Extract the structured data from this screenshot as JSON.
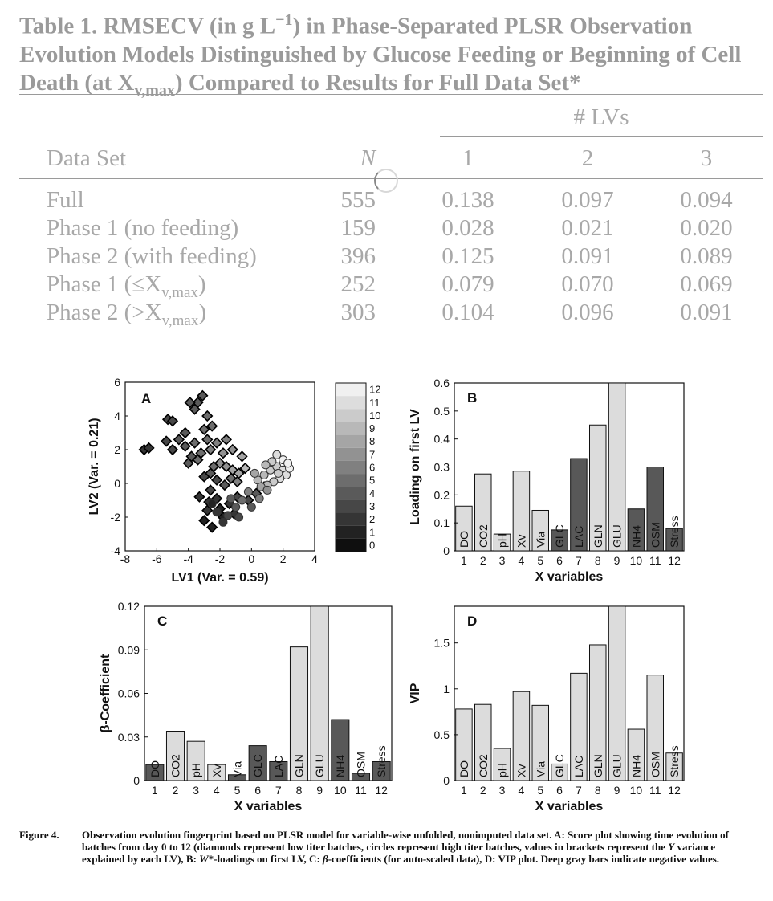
{
  "table": {
    "title_prefix": "Table 1. RMSECV (in g L",
    "title_sup": "−1",
    "title_mid": ") in Phase-Separated PLSR Observation Evolution Models Distinguished by Glucose Feeding or Beginning of Cell Death (at X",
    "title_sub": "v,max",
    "title_suffix": ") Compared to Results for Full Data Set*",
    "group_header": "# LVs",
    "col_dataset": "Data Set",
    "col_n": "N",
    "lv_headers": [
      "1",
      "2",
      "3"
    ],
    "rows": [
      {
        "label": "Full",
        "sub": "",
        "tail": "",
        "n": "555",
        "v": [
          "0.138",
          "0.097",
          "0.094"
        ]
      },
      {
        "label": "Phase 1 (no feeding)",
        "sub": "",
        "tail": "",
        "n": "159",
        "v": [
          "0.028",
          "0.021",
          "0.020"
        ]
      },
      {
        "label": "Phase 2 (with feeding)",
        "sub": "",
        "tail": "",
        "n": "396",
        "v": [
          "0.125",
          "0.091",
          "0.089"
        ]
      },
      {
        "label": "Phase 1 (≤X",
        "sub": "v,max",
        "tail": ")",
        "n": "252",
        "v": [
          "0.079",
          "0.070",
          "0.069"
        ]
      },
      {
        "label": "Phase 2 (>X",
        "sub": "v,max",
        "tail": ")",
        "n": "303",
        "v": [
          "0.104",
          "0.096",
          "0.091"
        ]
      }
    ]
  },
  "chart_data": [
    {
      "panel": "A",
      "type": "scatter",
      "xlabel": "LV1  (Var. = 0.59)",
      "ylabel": "LV2  (Var. = 0.21)",
      "xlim": [
        -8,
        4
      ],
      "ylim": [
        -4,
        6
      ],
      "xticks": [
        "-8",
        "-6",
        "-4",
        "-2",
        "0",
        "2",
        "4"
      ],
      "yticks": [
        "-4",
        "-2",
        "0",
        "2",
        "4",
        "6"
      ],
      "colorbar_labels": [
        "12",
        "11",
        "10",
        "9",
        "8",
        "7",
        "6",
        "5",
        "4",
        "3",
        "2",
        "1",
        "0"
      ],
      "series": [
        {
          "marker": "diamond",
          "points": [
            [
              -6.8,
              2.0,
              2
            ],
            [
              -6.5,
              2.1,
              2
            ],
            [
              -5.3,
              3.8,
              3
            ],
            [
              -5.0,
              3.7,
              3
            ],
            [
              -5.4,
              2.5,
              3
            ],
            [
              -5.0,
              2.0,
              3
            ],
            [
              -4.6,
              2.6,
              4
            ],
            [
              -4.2,
              2.2,
              4
            ],
            [
              -3.8,
              1.6,
              4
            ],
            [
              -3.4,
              1.4,
              5
            ],
            [
              -3.4,
              4.8,
              4
            ],
            [
              -3.1,
              5.2,
              4
            ],
            [
              -3.9,
              4.8,
              4
            ],
            [
              -3.6,
              4.4,
              4
            ],
            [
              -3.0,
              3.2,
              5
            ],
            [
              -2.8,
              2.6,
              5
            ],
            [
              -2.6,
              2.0,
              6
            ],
            [
              -2.2,
              2.4,
              6
            ],
            [
              -1.8,
              1.8,
              7
            ],
            [
              -2.0,
              1.2,
              7
            ],
            [
              -1.6,
              1.0,
              7
            ],
            [
              -1.2,
              0.8,
              8
            ],
            [
              -0.8,
              0.6,
              8
            ],
            [
              -0.4,
              0.9,
              9
            ],
            [
              -4.2,
              3.0,
              4
            ],
            [
              -3.6,
              2.4,
              5
            ],
            [
              -3.2,
              1.8,
              5
            ],
            [
              -4.0,
              1.2,
              4
            ],
            [
              -2.6,
              0.6,
              4
            ],
            [
              -2.2,
              0.2,
              3
            ],
            [
              -2.6,
              -0.4,
              3
            ],
            [
              -2.2,
              -0.9,
              2
            ],
            [
              -2.8,
              -1.6,
              2
            ],
            [
              -3.0,
              -2.2,
              1
            ],
            [
              -2.5,
              -2.6,
              1
            ],
            [
              -1.8,
              -2.0,
              1
            ],
            [
              -1.4,
              -1.2,
              2
            ],
            [
              -0.9,
              -0.8,
              3
            ],
            [
              -1.1,
              -1.8,
              2
            ],
            [
              -0.2,
              -1.0,
              3
            ],
            [
              0.3,
              -0.6,
              4
            ],
            [
              0.8,
              -0.2,
              5
            ],
            [
              -1.7,
              -0.1,
              4
            ],
            [
              -1.3,
              0.3,
              5
            ],
            [
              -0.9,
              0.1,
              6
            ],
            [
              -2.4,
              1.0,
              5
            ],
            [
              -3.0,
              0.4,
              3
            ],
            [
              -3.3,
              -0.8,
              2
            ],
            [
              -2.7,
              -1.1,
              2
            ],
            [
              -2.0,
              -1.5,
              1
            ],
            [
              -1.2,
              2.0,
              7
            ],
            [
              -0.6,
              1.6,
              8
            ],
            [
              -1.6,
              2.6,
              6
            ],
            [
              -2.8,
              4.0,
              5
            ],
            [
              -2.5,
              3.4,
              5
            ]
          ]
        },
        {
          "marker": "circle",
          "points": [
            [
              0.4,
              0.2,
              9
            ],
            [
              0.8,
              0.5,
              9
            ],
            [
              1.2,
              0.8,
              10
            ],
            [
              1.6,
              1.0,
              10
            ],
            [
              2.0,
              0.8,
              11
            ],
            [
              2.2,
              0.5,
              11
            ],
            [
              1.8,
              0.3,
              11
            ],
            [
              1.4,
              0.1,
              10
            ],
            [
              1.0,
              -0.1,
              9
            ],
            [
              0.6,
              -0.2,
              8
            ],
            [
              2.4,
              0.9,
              12
            ],
            [
              2.0,
              1.4,
              12
            ],
            [
              1.6,
              1.7,
              11
            ],
            [
              1.3,
              1.3,
              10
            ],
            [
              0.9,
              1.1,
              9
            ],
            [
              0.2,
              0.6,
              8
            ],
            [
              1.7,
              0.6,
              10
            ],
            [
              2.3,
              1.2,
              12
            ],
            [
              -0.2,
              -0.5,
              6
            ],
            [
              -0.6,
              -1.0,
              5
            ],
            [
              -1.0,
              -1.4,
              4
            ],
            [
              -1.5,
              -1.9,
              3
            ],
            [
              -1.8,
              -2.3,
              2
            ],
            [
              -2.2,
              -1.7,
              2
            ],
            [
              -1.3,
              -0.9,
              4
            ],
            [
              0.0,
              -1.4,
              4
            ],
            [
              0.5,
              -0.9,
              6
            ],
            [
              1.0,
              -0.4,
              7
            ],
            [
              -0.8,
              -2.0,
              3
            ],
            [
              -2.5,
              -1.2,
              1
            ]
          ]
        }
      ]
    },
    {
      "panel": "B",
      "type": "bar",
      "xlabel": "X variables",
      "ylabel": "Loading on first LV",
      "ylim": [
        0,
        0.6
      ],
      "yticks": [
        "0",
        "0.1",
        "0.2",
        "0.3",
        "0.4",
        "0.5",
        "0.6"
      ],
      "categories": [
        "1",
        "2",
        "3",
        "4",
        "5",
        "6",
        "7",
        "8",
        "9",
        "10",
        "11",
        "12"
      ],
      "bar_labels": [
        "DO",
        "CO2",
        "pH",
        "Xv",
        "Via",
        "GLC",
        "LAC",
        "GLN",
        "GLU",
        "NH4",
        "OSM",
        "Stress"
      ],
      "values": [
        0.16,
        0.275,
        0.06,
        0.285,
        0.145,
        0.075,
        0.33,
        0.45,
        0.62,
        0.15,
        0.3,
        0.08
      ],
      "negative": [
        false,
        false,
        false,
        false,
        false,
        true,
        true,
        false,
        false,
        true,
        true,
        true
      ]
    },
    {
      "panel": "C",
      "type": "bar",
      "xlabel": "X variables",
      "ylabel": "β-Coefficient",
      "ylim": [
        0,
        0.12
      ],
      "yticks": [
        "0",
        "0.03",
        "0.06",
        "0.09",
        "0.12"
      ],
      "categories": [
        "1",
        "2",
        "3",
        "4",
        "5",
        "6",
        "7",
        "8",
        "9",
        "10",
        "11",
        "12"
      ],
      "bar_labels": [
        "DO",
        "CO2",
        "pH",
        "Xv",
        "Via",
        "GLC",
        "LAC",
        "GLN",
        "GLU",
        "NH4",
        "OSM",
        "Stress"
      ],
      "values": [
        0.011,
        0.034,
        0.027,
        0.011,
        0.004,
        0.024,
        0.013,
        0.092,
        0.125,
        0.042,
        0.005,
        0.013
      ],
      "negative": [
        true,
        false,
        false,
        false,
        true,
        true,
        true,
        false,
        false,
        true,
        true,
        true
      ]
    },
    {
      "panel": "D",
      "type": "bar",
      "xlabel": "X variables",
      "ylabel": "VIP",
      "ylim": [
        0,
        1.9
      ],
      "yticks": [
        "0",
        "0.5",
        "1",
        "1.5"
      ],
      "categories": [
        "1",
        "2",
        "3",
        "4",
        "5",
        "6",
        "7",
        "8",
        "9",
        "10",
        "11",
        "12"
      ],
      "bar_labels": [
        "DO",
        "CO2",
        "pH",
        "Xv",
        "Via",
        "GLC",
        "LAC",
        "GLN",
        "GLU",
        "NH4",
        "OSM",
        "Stress"
      ],
      "values": [
        0.78,
        0.83,
        0.35,
        0.97,
        0.82,
        0.18,
        1.17,
        1.48,
        2.0,
        0.56,
        1.15,
        0.3
      ],
      "negative": [
        false,
        false,
        false,
        false,
        false,
        false,
        false,
        false,
        false,
        false,
        false,
        false
      ]
    }
  ],
  "caption": {
    "label": "Figure 4.",
    "text_1": "Observation evolution fingerprint based on PLSR model for variable-wise unfolded, nonimputed data set. A: Score plot showing time evolution of batches from day 0 to 12 (diamonds represent low titer batches, circles represent high titer batches, values in brackets represent the ",
    "y_italic": "Y",
    "text_2": " variance explained by each LV), B: ",
    "w_italic": "W",
    "text_3": "*-loadings on first LV, C: ",
    "beta_italic": "β",
    "text_4": "-coefficients (for auto-scaled data), D: VIP plot. Deep gray bars indicate negative values."
  },
  "colors": {
    "table_text": "#a8a8a8",
    "bar_positive": "#dcdcdc",
    "bar_negative": "#585858",
    "axis": "#111111"
  }
}
